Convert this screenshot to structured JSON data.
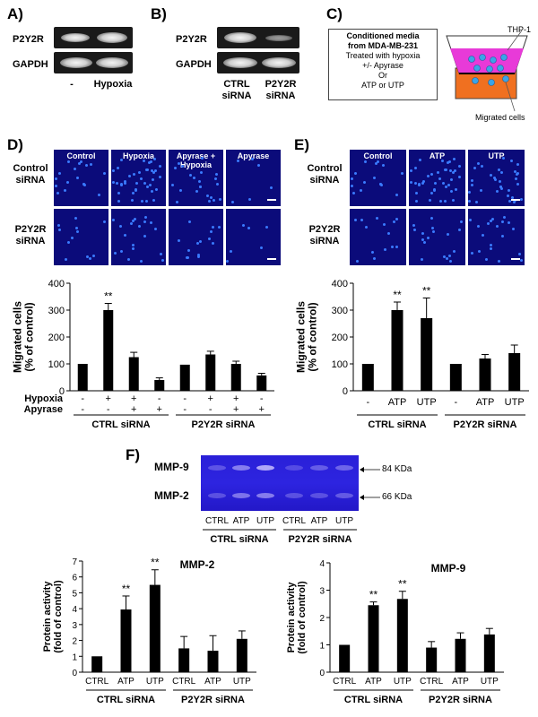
{
  "panel_labels": {
    "a": "A)",
    "b": "B)",
    "c": "C)",
    "d": "D)",
    "e": "E)",
    "f": "F)"
  },
  "panelA": {
    "row1": "P2Y2R",
    "row2": "GAPDH",
    "lane1": "-",
    "lane2": "Hypoxia"
  },
  "panelB": {
    "row1": "P2Y2R",
    "row2": "GAPDH",
    "lane1a": "CTRL",
    "lane1b": "siRNA",
    "lane2a": "P2Y2R",
    "lane2b": "siRNA"
  },
  "panelC": {
    "l1": "Conditioned media",
    "l2": "from MDA-MB-231",
    "l3": "Treated with hypoxia",
    "l4": "+/- Apyrase",
    "l5": "Or",
    "l6": "ATP or UTP",
    "thp": "THP-1",
    "migrated": "Migrated cells"
  },
  "panelD_micro": {
    "cols": [
      "Control",
      "Hypoxia",
      "Apyrase + Hypoxia",
      "Apyrase"
    ],
    "row1a": "Control",
    "row1b": "siRNA",
    "row2a": "P2Y2R",
    "row2b": "siRNA"
  },
  "panelE_micro": {
    "cols": [
      "Control",
      "ATP",
      "UTP"
    ],
    "row1a": "Control",
    "row1b": "siRNA",
    "row2a": "P2Y2R",
    "row2b": "siRNA"
  },
  "panelF_gel": {
    "mmp9": "MMP-9",
    "mmp2": "MMP-2",
    "kda84": "84 KDa",
    "kda66": "66 KDa",
    "lanes": [
      "CTRL",
      "ATP",
      "UTP",
      "CTRL",
      "ATP",
      "UTP"
    ],
    "grp1": "CTRL siRNA",
    "grp2": "P2Y2R siRNA"
  },
  "chart_data": [
    {
      "id": "D",
      "type": "bar",
      "ylabel": "Migrated cells (% of control)",
      "ylim": [
        0,
        400
      ],
      "yticks": [
        0,
        100,
        200,
        300,
        400
      ],
      "values": [
        100,
        300,
        125,
        40,
        97,
        135,
        100,
        57
      ],
      "errors": [
        0,
        25,
        18,
        8,
        0,
        12,
        10,
        8
      ],
      "sig": [
        "",
        "**",
        "",
        "",
        "",
        "",
        "",
        ""
      ],
      "row_labels": [
        "Hypoxia",
        "Apyrase"
      ],
      "hypoxia": [
        "-",
        "+",
        "+",
        "-",
        "-",
        "+",
        "+",
        "-"
      ],
      "apyrase": [
        "-",
        "-",
        "+",
        "+",
        "-",
        "-",
        "+",
        "+"
      ],
      "groups": [
        "CTRL siRNA",
        "P2Y2R siRNA"
      ]
    },
    {
      "id": "E",
      "type": "bar",
      "ylabel": "Migrated cells (% of control)",
      "ylim": [
        0,
        400
      ],
      "yticks": [
        0,
        100,
        200,
        300,
        400
      ],
      "categories": [
        "-",
        "ATP",
        "UTP",
        "-",
        "ATP",
        "UTP"
      ],
      "values": [
        100,
        300,
        270,
        100,
        120,
        140
      ],
      "errors": [
        0,
        30,
        75,
        0,
        15,
        30
      ],
      "sig": [
        "",
        "**",
        "**",
        "",
        "",
        ""
      ],
      "groups": [
        "CTRL siRNA",
        "P2Y2R siRNA"
      ]
    },
    {
      "id": "F-MMP2",
      "type": "bar",
      "title": "MMP-2",
      "ylabel": "Protein activity (fold of control)",
      "ylim": [
        0,
        7
      ],
      "yticks": [
        0,
        1,
        2,
        3,
        4,
        5,
        6,
        7
      ],
      "categories": [
        "CTRL",
        "ATP",
        "UTP",
        "CTRL",
        "ATP",
        "UTP"
      ],
      "values": [
        1.0,
        3.95,
        5.5,
        1.5,
        1.35,
        2.1
      ],
      "errors": [
        0,
        0.85,
        0.95,
        0.75,
        0.95,
        0.5
      ],
      "sig": [
        "",
        "**",
        "**",
        "",
        "",
        ""
      ],
      "groups": [
        "CTRL siRNA",
        "P2Y2R siRNA"
      ]
    },
    {
      "id": "F-MMP9",
      "type": "bar",
      "title": "MMP-9",
      "ylabel": "Protein activity (fold of control)",
      "ylim": [
        0,
        4
      ],
      "yticks": [
        0,
        1,
        2,
        3,
        4
      ],
      "categories": [
        "CTRL",
        "ATP",
        "UTP",
        "CTRL",
        "ATP",
        "UTP"
      ],
      "values": [
        1.0,
        2.45,
        2.68,
        0.9,
        1.22,
        1.38
      ],
      "errors": [
        0,
        0.12,
        0.28,
        0.22,
        0.22,
        0.22
      ],
      "sig": [
        "",
        "**",
        "**",
        "",
        "",
        ""
      ],
      "groups": [
        "CTRL siRNA",
        "P2Y2R siRNA"
      ]
    }
  ]
}
